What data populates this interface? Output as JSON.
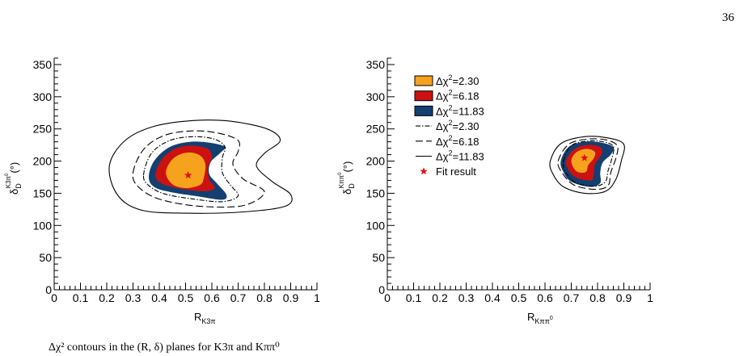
{
  "page": {
    "page_number": "36"
  },
  "colors": {
    "c2_30": "#f5a21c",
    "c6_18": "#cc1111",
    "c11_83": "#133f71",
    "star": "#dd1111",
    "axis": "#000000"
  },
  "chart_data": [
    {
      "type": "contour",
      "title": "",
      "xlabel_main": "R",
      "xlabel_sub": "K3π",
      "ylabel_main": "δ",
      "ylabel_sub": "D",
      "ylabel_sup": "K3π",
      "ylabel_sup2": "0",
      "ylabel_unit": "(°)",
      "xlim": [
        0,
        1
      ],
      "ylim": [
        0,
        360
      ],
      "xticks": [
        "0",
        "0.1",
        "0.2",
        "0.3",
        "0.4",
        "0.5",
        "0.6",
        "0.7",
        "0.8",
        "0.9",
        "1"
      ],
      "yticks": [
        "0",
        "50",
        "100",
        "150",
        "200",
        "250",
        "300",
        "350"
      ],
      "fit_result": {
        "x": 0.51,
        "y": 178
      },
      "filled_contours": [
        {
          "level": "11.83",
          "points": [
            [
              0.36,
              175
            ],
            [
              0.38,
              200
            ],
            [
              0.44,
              222
            ],
            [
              0.52,
              230
            ],
            [
              0.6,
              228
            ],
            [
              0.65,
              222
            ],
            [
              0.63,
              212
            ],
            [
              0.595,
              198
            ],
            [
              0.59,
              180
            ],
            [
              0.62,
              165
            ],
            [
              0.655,
              148
            ],
            [
              0.64,
              140
            ],
            [
              0.55,
              145
            ],
            [
              0.44,
              152
            ],
            [
              0.38,
              160
            ]
          ]
        },
        {
          "level": "6.18",
          "points": [
            [
              0.385,
              178
            ],
            [
              0.41,
              203
            ],
            [
              0.46,
              219
            ],
            [
              0.52,
              224
            ],
            [
              0.585,
              219
            ],
            [
              0.6,
              205
            ],
            [
              0.585,
              190
            ],
            [
              0.59,
              172
            ],
            [
              0.61,
              158
            ],
            [
              0.57,
              153
            ],
            [
              0.48,
              157
            ],
            [
              0.41,
              165
            ]
          ]
        },
        {
          "level": "2.30",
          "points": [
            [
              0.425,
              182
            ],
            [
              0.45,
              203
            ],
            [
              0.5,
              213
            ],
            [
              0.55,
              210
            ],
            [
              0.575,
              196
            ],
            [
              0.57,
              175
            ],
            [
              0.555,
              163
            ],
            [
              0.5,
              158
            ],
            [
              0.45,
              164
            ]
          ]
        }
      ],
      "line_contours": [
        {
          "level": "2.30",
          "style": "dashdot",
          "points": [
            [
              0.34,
              178
            ],
            [
              0.37,
              212
            ],
            [
              0.44,
              232
            ],
            [
              0.53,
              238
            ],
            [
              0.61,
              234
            ],
            [
              0.65,
              222
            ],
            [
              0.64,
              205
            ],
            [
              0.64,
              182
            ],
            [
              0.67,
              163
            ],
            [
              0.7,
              146
            ],
            [
              0.64,
              137
            ],
            [
              0.53,
              141
            ],
            [
              0.42,
              149
            ],
            [
              0.36,
              162
            ]
          ]
        },
        {
          "level": "6.18",
          "style": "dash",
          "points": [
            [
              0.3,
              182
            ],
            [
              0.34,
              218
            ],
            [
              0.42,
              240
            ],
            [
              0.53,
              247
            ],
            [
              0.63,
              243
            ],
            [
              0.7,
              232
            ],
            [
              0.7,
              215
            ],
            [
              0.68,
              195
            ],
            [
              0.72,
              172
            ],
            [
              0.8,
              152
            ],
            [
              0.72,
              131
            ],
            [
              0.55,
              130
            ],
            [
              0.4,
              141
            ],
            [
              0.32,
              160
            ]
          ]
        },
        {
          "level": "11.83",
          "style": "solid",
          "points": [
            [
              0.21,
              193
            ],
            [
              0.27,
              232
            ],
            [
              0.38,
              254
            ],
            [
              0.53,
              263
            ],
            [
              0.67,
              262
            ],
            [
              0.81,
              250
            ],
            [
              0.86,
              232
            ],
            [
              0.8,
              212
            ],
            [
              0.77,
              192
            ],
            [
              0.83,
              168
            ],
            [
              0.9,
              148
            ],
            [
              0.88,
              130
            ],
            [
              0.72,
              121
            ],
            [
              0.5,
              119
            ],
            [
              0.33,
              124
            ],
            [
              0.24,
              148
            ]
          ]
        }
      ]
    },
    {
      "type": "contour",
      "title": "",
      "xlabel_main": "R",
      "xlabel_sub": "Kππ",
      "xlabel_sub_sup": "0",
      "ylabel_main": "δ",
      "ylabel_sub": "D",
      "ylabel_sup": "Kππ",
      "ylabel_sup2": "0",
      "ylabel_unit": "(°)",
      "xlim": [
        0,
        1
      ],
      "ylim": [
        0,
        360
      ],
      "xticks": [
        "0",
        "0.1",
        "0.2",
        "0.3",
        "0.4",
        "0.5",
        "0.6",
        "0.7",
        "0.8",
        "0.9",
        "1"
      ],
      "yticks": [
        "0",
        "50",
        "100",
        "150",
        "200",
        "250",
        "300",
        "350"
      ],
      "fit_result": {
        "x": 0.75,
        "y": 205
      },
      "filled_contours": [
        {
          "level": "11.83",
          "points": [
            [
              0.66,
              200
            ],
            [
              0.69,
              222
            ],
            [
              0.75,
              230
            ],
            [
              0.81,
              229
            ],
            [
              0.86,
              222
            ],
            [
              0.85,
              210
            ],
            [
              0.82,
              198
            ],
            [
              0.81,
              182
            ],
            [
              0.81,
              166
            ],
            [
              0.77,
              160
            ],
            [
              0.7,
              168
            ],
            [
              0.67,
              183
            ]
          ]
        },
        {
          "level": "6.18",
          "points": [
            [
              0.68,
              200
            ],
            [
              0.71,
              218
            ],
            [
              0.76,
              225
            ],
            [
              0.81,
              222
            ],
            [
              0.815,
              210
            ],
            [
              0.79,
              195
            ],
            [
              0.785,
              178
            ],
            [
              0.775,
              170
            ],
            [
              0.72,
              174
            ],
            [
              0.69,
              186
            ]
          ]
        },
        {
          "level": "2.30",
          "points": [
            [
              0.7,
              200
            ],
            [
              0.72,
              214
            ],
            [
              0.76,
              219
            ],
            [
              0.79,
              214
            ],
            [
              0.785,
              204
            ],
            [
              0.765,
              194
            ],
            [
              0.755,
              183
            ],
            [
              0.72,
              184
            ]
          ]
        }
      ],
      "line_contours": [
        {
          "level": "2.30",
          "style": "dashdot",
          "points": [
            [
              0.67,
              200
            ],
            [
              0.7,
              224
            ],
            [
              0.76,
              231
            ],
            [
              0.82,
              230
            ],
            [
              0.86,
              223
            ],
            [
              0.855,
              205
            ],
            [
              0.84,
              185
            ],
            [
              0.83,
              168
            ],
            [
              0.79,
              161
            ],
            [
              0.72,
              166
            ],
            [
              0.68,
              182
            ]
          ]
        },
        {
          "level": "6.18",
          "style": "dash",
          "points": [
            [
              0.65,
              200
            ],
            [
              0.69,
              226
            ],
            [
              0.76,
              234
            ],
            [
              0.83,
              233
            ],
            [
              0.875,
              224
            ],
            [
              0.87,
              205
            ],
            [
              0.85,
              182
            ],
            [
              0.84,
              162
            ],
            [
              0.79,
              156
            ],
            [
              0.71,
              163
            ],
            [
              0.665,
              182
            ]
          ]
        },
        {
          "level": "11.83",
          "style": "solid",
          "points": [
            [
              0.62,
              200
            ],
            [
              0.66,
              227
            ],
            [
              0.75,
              238
            ],
            [
              0.84,
              236
            ],
            [
              0.9,
              226
            ],
            [
              0.89,
              200
            ],
            [
              0.87,
              172
            ],
            [
              0.83,
              153
            ],
            [
              0.75,
              150
            ],
            [
              0.67,
              160
            ],
            [
              0.63,
              180
            ]
          ]
        }
      ],
      "legend": {
        "placement": "top-left",
        "entries": [
          {
            "kind": "fill",
            "color_key": "c2_30",
            "prefix": "Δχ",
            "sup": "2",
            "suffix": "=2.30"
          },
          {
            "kind": "fill",
            "color_key": "c6_18",
            "prefix": "Δχ",
            "sup": "2",
            "suffix": "=6.18"
          },
          {
            "kind": "fill",
            "color_key": "c11_83",
            "prefix": "Δχ",
            "sup": "2",
            "suffix": "=11.83"
          },
          {
            "kind": "dashdot",
            "prefix": "Δχ",
            "sup": "2",
            "suffix": "=2.30"
          },
          {
            "kind": "dash",
            "prefix": "Δχ",
            "sup": "2",
            "suffix": "=6.18"
          },
          {
            "kind": "solid",
            "prefix": "Δχ",
            "sup": "2",
            "suffix": "=11.83"
          },
          {
            "kind": "star",
            "text": "Fit result"
          }
        ]
      }
    }
  ],
  "footer": {
    "text": "Δχ² contours in the (R, δ) planes for K3π and Kππ⁰"
  }
}
